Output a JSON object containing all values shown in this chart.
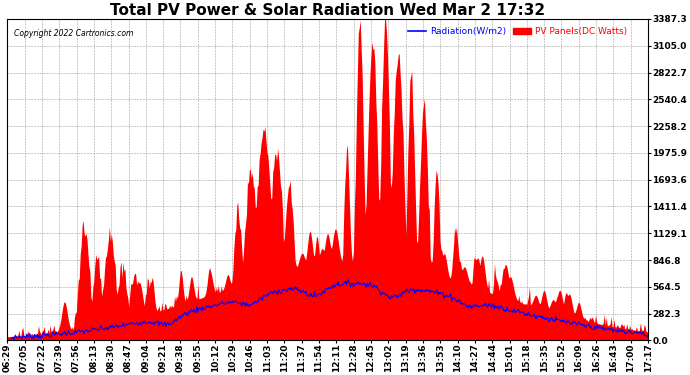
{
  "title": "Total PV Power & Solar Radiation Wed Mar 2 17:32",
  "copyright": "Copyright 2022 Cartronics.com",
  "ymax": 3387.3,
  "yticks": [
    0.0,
    282.3,
    564.5,
    846.8,
    1129.1,
    1411.4,
    1693.6,
    1975.9,
    2258.2,
    2540.4,
    2822.7,
    3105.0,
    3387.3
  ],
  "legend_radiation": "Radiation(W/m2)",
  "legend_pv": "PV Panels(DC Watts)",
  "color_radiation": "#0000ff",
  "color_pv": "#ff0000",
  "background_color": "#ffffff",
  "grid_color": "#888888",
  "title_fontsize": 11,
  "tick_fontsize": 6.5,
  "x_tick_labels": [
    "06:29",
    "07:05",
    "07:22",
    "07:39",
    "07:56",
    "08:13",
    "08:30",
    "08:47",
    "09:04",
    "09:21",
    "09:38",
    "09:55",
    "10:12",
    "10:29",
    "10:46",
    "11:03",
    "11:20",
    "11:37",
    "11:54",
    "12:11",
    "12:28",
    "12:45",
    "13:02",
    "13:19",
    "13:36",
    "13:53",
    "14:10",
    "14:27",
    "14:44",
    "15:01",
    "15:18",
    "15:35",
    "15:52",
    "16:09",
    "16:26",
    "16:43",
    "17:00",
    "17:17"
  ],
  "figwidth": 6.9,
  "figheight": 3.75,
  "dpi": 100
}
